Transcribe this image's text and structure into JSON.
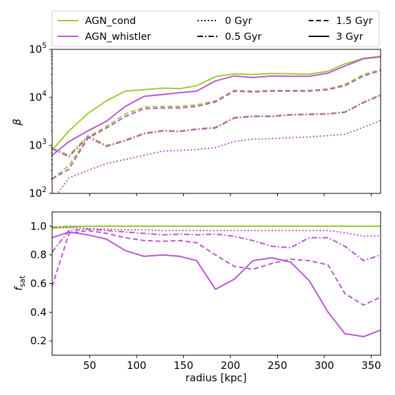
{
  "chart_data": [
    {
      "type": "line",
      "panel": "top",
      "ylabel": "β",
      "yscale": "log",
      "xlim": [
        10,
        360
      ],
      "ylim_exp": [
        2,
        5
      ],
      "xticks": [
        50,
        100,
        150,
        200,
        250,
        300,
        350
      ],
      "yticks": [
        {
          "base": "10",
          "exp": "2",
          "value": 100
        },
        {
          "base": "10",
          "exp": "3",
          "value": 1000
        },
        {
          "base": "10",
          "exp": "4",
          "value": 10000
        },
        {
          "base": "10",
          "exp": "5",
          "value": 100000
        }
      ],
      "x": [
        10,
        28,
        48,
        68,
        88,
        108,
        128,
        146,
        164,
        184,
        204,
        224,
        244,
        264,
        284,
        304,
        322,
        342,
        360
      ],
      "series": [
        {
          "model": "AGN_cond",
          "time": "3 Gyr",
          "values": [
            800,
            2000,
            4600,
            8500,
            13500,
            14500,
            15600,
            15200,
            17500,
            27000,
            31000,
            30000,
            31500,
            31000,
            30500,
            35000,
            50000,
            65000,
            72000
          ]
        },
        {
          "model": "AGN_whistler",
          "time": "3 Gyr",
          "values": [
            620,
            1200,
            2000,
            3200,
            6500,
            10500,
            11500,
            12500,
            13500,
            22000,
            28000,
            26000,
            28000,
            27500,
            27500,
            32000,
            45000,
            64000,
            70000
          ]
        },
        {
          "model": "AGN_cond",
          "time": "1.5 Gyr",
          "values": [
            200,
            380,
            1500,
            2500,
            4500,
            6300,
            6500,
            6500,
            7000,
            8500,
            14000,
            13500,
            14000,
            14000,
            14000,
            15000,
            18500,
            30000,
            38000
          ]
        },
        {
          "model": "AGN_whistler",
          "time": "1.5 Gyr",
          "values": [
            200,
            320,
            1400,
            2300,
            4000,
            5800,
            6000,
            6000,
            6500,
            8000,
            13500,
            13000,
            13500,
            13500,
            13500,
            14500,
            17500,
            28000,
            36000
          ]
        },
        {
          "model": "AGN_cond",
          "time": "0.5 Gyr",
          "values": [
            880,
            620,
            1600,
            1000,
            1300,
            1800,
            2050,
            2000,
            2200,
            2400,
            3800,
            4100,
            4100,
            4400,
            4500,
            4600,
            5000,
            8000,
            11500
          ]
        },
        {
          "model": "AGN_whistler",
          "time": "0.5 Gyr",
          "values": [
            850,
            580,
            1500,
            950,
            1250,
            1750,
            2000,
            1950,
            2150,
            2300,
            3700,
            4000,
            4000,
            4300,
            4400,
            4500,
            4900,
            7800,
            11000
          ]
        },
        {
          "model": "AGN_whistler",
          "time": "0 Gyr",
          "values": [
            70,
            210,
            300,
            420,
            510,
            620,
            760,
            780,
            820,
            900,
            1200,
            1350,
            1380,
            1450,
            1500,
            1600,
            1700,
            2400,
            3300
          ]
        }
      ]
    },
    {
      "type": "line",
      "panel": "bottom",
      "ylabel": "f_sat",
      "xlabel": "radius [kpc]",
      "xlim": [
        10,
        360
      ],
      "ylim": [
        0.1,
        1.1
      ],
      "xticks": [
        50,
        100,
        150,
        200,
        250,
        300,
        350
      ],
      "yticks": [
        "0.2",
        "0.4",
        "0.6",
        "0.8",
        "1.0"
      ],
      "x": [
        10,
        28,
        48,
        68,
        88,
        108,
        128,
        146,
        164,
        184,
        204,
        224,
        244,
        264,
        284,
        304,
        322,
        342,
        360
      ],
      "series": [
        {
          "model": "AGN_cond",
          "time": "0 Gyr",
          "values": [
            0.99,
            1.0,
            1.0,
            1.0,
            1.0,
            1.0,
            1.0,
            1.0,
            1.0,
            1.0,
            1.0,
            1.0,
            1.0,
            1.0,
            1.0,
            1.0,
            1.0,
            1.0,
            1.0
          ]
        },
        {
          "model": "AGN_cond",
          "time": "0.5 Gyr",
          "values": [
            0.995,
            1.0,
            1.0,
            1.0,
            1.0,
            1.0,
            1.0,
            1.0,
            1.0,
            1.0,
            1.0,
            1.0,
            1.0,
            1.0,
            1.0,
            1.0,
            1.0,
            1.0,
            1.0
          ]
        },
        {
          "model": "AGN_cond",
          "time": "1.5 Gyr",
          "values": [
            0.99,
            0.995,
            1.0,
            1.0,
            1.0,
            1.0,
            1.0,
            1.0,
            1.0,
            1.0,
            1.0,
            1.0,
            1.0,
            1.0,
            1.0,
            1.0,
            1.0,
            1.0,
            1.0
          ]
        },
        {
          "model": "AGN_cond",
          "time": "3 Gyr",
          "values": [
            0.985,
            0.995,
            1.0,
            1.0,
            1.0,
            1.0,
            1.0,
            1.0,
            1.0,
            1.0,
            1.0,
            1.0,
            1.0,
            1.0,
            1.0,
            1.0,
            1.0,
            1.0,
            1.0
          ]
        },
        {
          "model": "AGN_whistler",
          "time": "0 Gyr",
          "values": [
            0.995,
            0.99,
            0.985,
            0.98,
            0.975,
            0.975,
            0.97,
            0.97,
            0.97,
            0.97,
            0.97,
            0.97,
            0.97,
            0.97,
            0.97,
            0.97,
            0.955,
            0.93,
            0.935
          ]
        },
        {
          "model": "AGN_whistler",
          "time": "0.5 Gyr",
          "values": [
            0.82,
            0.97,
            0.98,
            0.97,
            0.96,
            0.95,
            0.94,
            0.945,
            0.94,
            0.945,
            0.93,
            0.9,
            0.86,
            0.85,
            0.92,
            0.92,
            0.86,
            0.76,
            0.8
          ]
        },
        {
          "model": "AGN_whistler",
          "time": "1.5 Gyr",
          "values": [
            0.58,
            0.95,
            0.97,
            0.95,
            0.92,
            0.9,
            0.895,
            0.9,
            0.885,
            0.8,
            0.72,
            0.7,
            0.74,
            0.77,
            0.76,
            0.73,
            0.53,
            0.45,
            0.505
          ]
        },
        {
          "model": "AGN_whistler",
          "time": "3 Gyr",
          "values": [
            0.92,
            0.96,
            0.94,
            0.91,
            0.83,
            0.79,
            0.8,
            0.79,
            0.76,
            0.56,
            0.63,
            0.76,
            0.78,
            0.75,
            0.62,
            0.4,
            0.25,
            0.23,
            0.275
          ]
        }
      ]
    }
  ],
  "legend": {
    "placement": "top",
    "models": [
      {
        "label": "AGN_cond",
        "color": "#9acd32"
      },
      {
        "label": "AGN_whistler",
        "color": "#ba55d3"
      }
    ],
    "times": [
      {
        "label": "0 Gyr",
        "dash": "dotted"
      },
      {
        "label": "0.5 Gyr",
        "dash": "dashdot"
      },
      {
        "label": "1.5 Gyr",
        "dash": "dashed"
      },
      {
        "label": "3 Gyr",
        "dash": "solid"
      }
    ]
  }
}
